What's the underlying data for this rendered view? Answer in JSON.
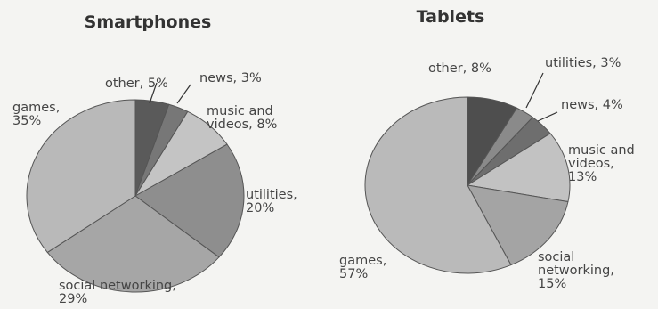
{
  "chart_data": [
    {
      "type": "pie",
      "title": "Smartphones",
      "slices": [
        {
          "label": [
            "other, 5%"
          ],
          "value": 5,
          "color": "#5a5a5a"
        },
        {
          "label": [
            "news, 3%"
          ],
          "value": 3,
          "color": "#777777"
        },
        {
          "label": [
            "music and",
            "videos, 8%"
          ],
          "value": 8,
          "color": "#c4c4c4"
        },
        {
          "label": [
            "utilities,",
            "20%"
          ],
          "value": 20,
          "color": "#8e8e8e"
        },
        {
          "label": [
            "social networking,",
            "29%"
          ],
          "value": 29,
          "color": "#a6a6a6"
        },
        {
          "label": [
            "games,",
            "35%"
          ],
          "value": 35,
          "color": "#b9b9b9"
        }
      ]
    },
    {
      "type": "pie",
      "title": "Tablets",
      "slices": [
        {
          "label": [
            "other, 8%"
          ],
          "value": 8,
          "color": "#4e4e4e"
        },
        {
          "label": [
            "utilities, 3%"
          ],
          "value": 3,
          "color": "#8a8a8a"
        },
        {
          "label": [
            "news, 4%"
          ],
          "value": 4,
          "color": "#6e6e6e"
        },
        {
          "label": [
            "music and",
            "videos,",
            "13%"
          ],
          "value": 13,
          "color": "#c2c2c2"
        },
        {
          "label": [
            "social",
            "networking,",
            "15%"
          ],
          "value": 15,
          "color": "#a4a4a4"
        },
        {
          "label": [
            "games,",
            "57%"
          ],
          "value": 57,
          "color": "#bababa"
        }
      ]
    }
  ]
}
